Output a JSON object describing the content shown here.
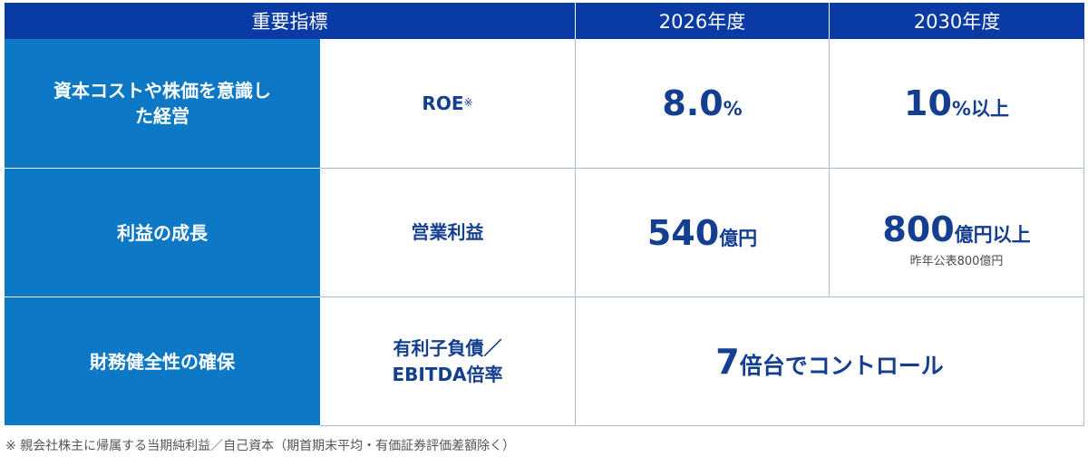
{
  "header": {
    "col1": "重要指標",
    "col2": "2026年度",
    "col3": "2030年度"
  },
  "rows": [
    {
      "category": "資本コストや株価を意識した経営",
      "metric": "ROE",
      "metric_mark": "※",
      "target_2026": {
        "value": "8.0",
        "unit": "%"
      },
      "target_2030": {
        "value": "10",
        "unit": "%以上"
      }
    },
    {
      "category": "利益の成長",
      "metric": "営業利益",
      "target_2026": {
        "value": "540",
        "unit": "億円"
      },
      "target_2030": {
        "value": "800",
        "unit": "億円以上",
        "note": "昨年公表800億円"
      }
    },
    {
      "category": "財務健全性の確保",
      "metric_line1": "有利子負債／",
      "metric_line2": "EBITDA倍率",
      "target_combined": {
        "value": "7",
        "unit": "倍台でコントロール"
      }
    }
  ],
  "footnote": "※ 親会社株主に帰属する当期純利益／自己資本（期首期末平均・有価証券評価差額除く）",
  "colors": {
    "header": "#0a3aa3",
    "category": "#0d78c6",
    "value_text": "#143e8f"
  }
}
